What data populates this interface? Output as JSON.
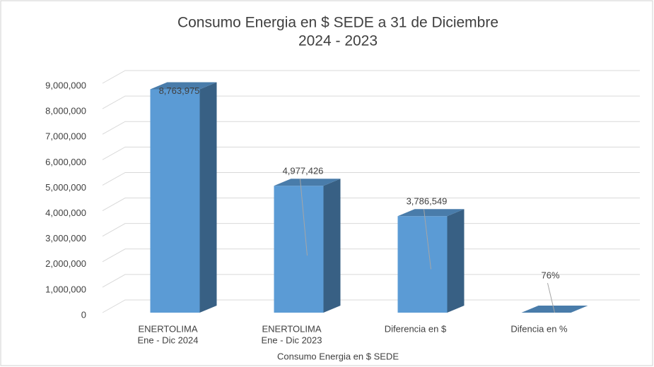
{
  "chart_data": {
    "type": "bar3d",
    "title": [
      "Consumo  Energia  en $ SEDE a 31 de Diciembre",
      "2024 - 2023"
    ],
    "x_label": "Consumo Energia en $ SEDE",
    "categories": [
      [
        "ENERTOLIMA",
        "Ene - Dic 2024"
      ],
      [
        "ENERTOLIMA",
        "Ene - Dic  2023"
      ],
      [
        "Diferencia en $"
      ],
      [
        "Difencia en %"
      ]
    ],
    "values": [
      8763975,
      4977426,
      3786549,
      0.76
    ],
    "value_labels": [
      "8,763,975",
      "4,977,426",
      "3,786,549",
      "76%"
    ],
    "color": "#5b9bd5",
    "ylim": [
      0,
      9000000
    ],
    "yticks": [
      0,
      {
        "value": 1000000,
        "label": "1,000,000"
      },
      {
        "value": 2000000,
        "label": "2,000,000"
      },
      {
        "value": 3000000,
        "label": "3,000,000"
      },
      {
        "value": 4000000,
        "label": "4,000,000"
      },
      {
        "value": 5000000,
        "label": "5,000,000"
      },
      {
        "value": 6000000,
        "label": "6,000,000"
      },
      {
        "value": 7000000,
        "label": "7,000,000"
      },
      {
        "value": 8000000,
        "label": "8,000,000"
      },
      {
        "value": 9000000,
        "label": "9,000,000"
      }
    ],
    "grid": true
  }
}
